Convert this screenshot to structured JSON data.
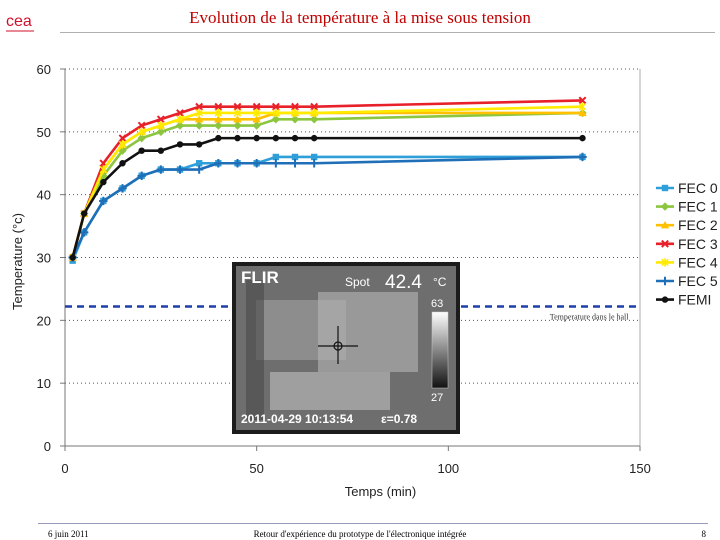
{
  "header": {
    "title": "Evolution de la température à la mise sous tension",
    "logo_text": "cea"
  },
  "footer": {
    "date": "6 juin 2011",
    "caption": "Retour d'expérience du prototype de l'électronique intégrée",
    "page": "8"
  },
  "thermal_image": {
    "brand": "FLIR",
    "spot_label": "Spot",
    "spot_value": "42.4",
    "unit": "°C",
    "scale_max": "63",
    "scale_min": "27",
    "timestamp": "2011-04-29 10:13:54",
    "emissivity": "ε=0.78"
  },
  "chart_data": {
    "type": "line",
    "xlabel": "Temps (min)",
    "ylabel": "Temperature (°c)",
    "xlim": [
      0,
      150
    ],
    "ylim": [
      0,
      60
    ],
    "xticks": [
      0,
      50,
      100,
      150
    ],
    "yticks": [
      0,
      10,
      20,
      30,
      40,
      50,
      60
    ],
    "grid": "horizontal dotted",
    "legend_position": "right",
    "reference_line": {
      "y": 22.2,
      "label": "Temperature dans le hall",
      "color": "#1f3fa8"
    },
    "series": [
      {
        "name": "FEC 0",
        "color": "#2e9fd8",
        "marker": "square",
        "x": [
          2,
          5,
          10,
          15,
          20,
          25,
          30,
          35,
          40,
          45,
          50,
          55,
          60,
          65,
          135
        ],
        "y": [
          29.5,
          34,
          39,
          41,
          43,
          44,
          44,
          45,
          45,
          45,
          45,
          46,
          46,
          46,
          46
        ]
      },
      {
        "name": "FEC 1",
        "color": "#8cc63f",
        "marker": "diamond",
        "x": [
          2,
          5,
          10,
          15,
          20,
          25,
          30,
          35,
          40,
          45,
          50,
          55,
          60,
          65,
          135
        ],
        "y": [
          30,
          37,
          43,
          47,
          49,
          50,
          51,
          51,
          51,
          51,
          51,
          52,
          52,
          52,
          53
        ]
      },
      {
        "name": "FEC 2",
        "color": "#ffc000",
        "marker": "triangle",
        "x": [
          2,
          5,
          10,
          15,
          20,
          25,
          30,
          35,
          40,
          45,
          50,
          55,
          60,
          65,
          135
        ],
        "y": [
          30,
          37,
          44,
          48,
          50,
          51,
          52,
          52,
          52,
          52,
          52,
          53,
          53,
          53,
          53
        ]
      },
      {
        "name": "FEC 3",
        "color": "#e8202a",
        "marker": "x",
        "x": [
          2,
          5,
          10,
          15,
          20,
          25,
          30,
          35,
          40,
          45,
          50,
          55,
          60,
          65,
          135
        ],
        "y": [
          30,
          37,
          45,
          49,
          51,
          52,
          53,
          54,
          54,
          54,
          54,
          54,
          54,
          54,
          55
        ]
      },
      {
        "name": "FEC 4",
        "color": "#ffea00",
        "marker": "star",
        "x": [
          2,
          5,
          10,
          15,
          20,
          25,
          30,
          35,
          40,
          45,
          50,
          55,
          60,
          65,
          135
        ],
        "y": [
          30,
          37,
          44,
          48,
          50,
          51,
          52,
          53,
          53,
          53,
          53,
          53,
          53,
          53,
          54
        ]
      },
      {
        "name": "FEC 5",
        "color": "#1f6fb8",
        "marker": "plus",
        "x": [
          2,
          5,
          10,
          15,
          20,
          25,
          30,
          35,
          40,
          45,
          50,
          55,
          60,
          65,
          135
        ],
        "y": [
          30,
          34,
          39,
          41,
          43,
          44,
          44,
          44,
          45,
          45,
          45,
          45,
          45,
          45,
          46
        ]
      },
      {
        "name": "FEMI",
        "color": "#111111",
        "marker": "circle",
        "x": [
          2,
          5,
          10,
          15,
          20,
          25,
          30,
          35,
          40,
          45,
          50,
          55,
          60,
          65,
          135
        ],
        "y": [
          30,
          37,
          42,
          45,
          47,
          47,
          48,
          48,
          49,
          49,
          49,
          49,
          49,
          49,
          49
        ]
      }
    ]
  }
}
